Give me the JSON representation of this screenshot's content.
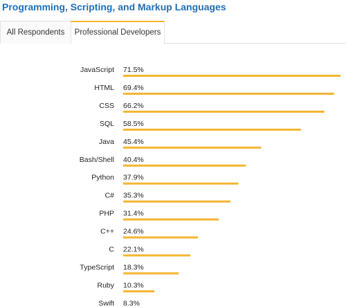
{
  "header": {
    "title": "Programming, Scripting, and Markup Languages",
    "title_color": "#1f6fb8"
  },
  "tabs": [
    {
      "label": "All Respondents",
      "active": false
    },
    {
      "label": "Professional Developers",
      "active": true
    }
  ],
  "chart_data": {
    "type": "bar",
    "orientation": "horizontal",
    "bar_color": "#f4b531",
    "value_suffix": "%",
    "grid": false,
    "categories": [
      "JavaScript",
      "HTML",
      "CSS",
      "SQL",
      "Java",
      "Bash/Shell",
      "Python",
      "C#",
      "PHP",
      "C++",
      "C",
      "TypeScript",
      "Ruby",
      "Swift"
    ],
    "values": [
      71.5,
      69.4,
      66.2,
      58.5,
      45.4,
      40.4,
      37.9,
      35.3,
      31.4,
      24.6,
      22.1,
      18.3,
      10.3,
      8.3
    ],
    "xlim": [
      0,
      71.5
    ]
  }
}
